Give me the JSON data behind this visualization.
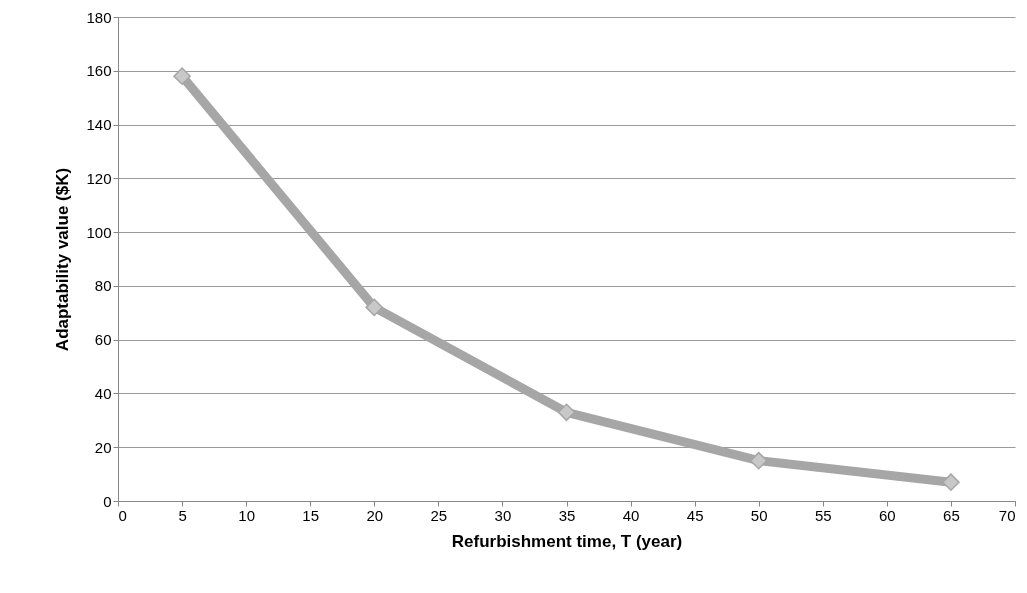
{
  "chart_data": {
    "type": "line",
    "xlabel": "Refurbishment  time, T (year)",
    "ylabel": "Adaptability value ($K)",
    "x": [
      5,
      20,
      35,
      50,
      65
    ],
    "series": [
      {
        "color": "#a6a6a6",
        "values": [
          158,
          72,
          33,
          15,
          7
        ]
      }
    ],
    "xlim": [
      0,
      70
    ],
    "xticks": [
      0,
      5,
      10,
      15,
      20,
      25,
      30,
      35,
      40,
      45,
      50,
      55,
      60,
      65,
      70
    ],
    "ylim": [
      0,
      180
    ],
    "yticks": [
      0,
      20,
      40,
      60,
      80,
      100,
      120,
      140,
      160,
      180
    ],
    "grid": "y",
    "marker": "diamond",
    "line_style": "solid"
  }
}
